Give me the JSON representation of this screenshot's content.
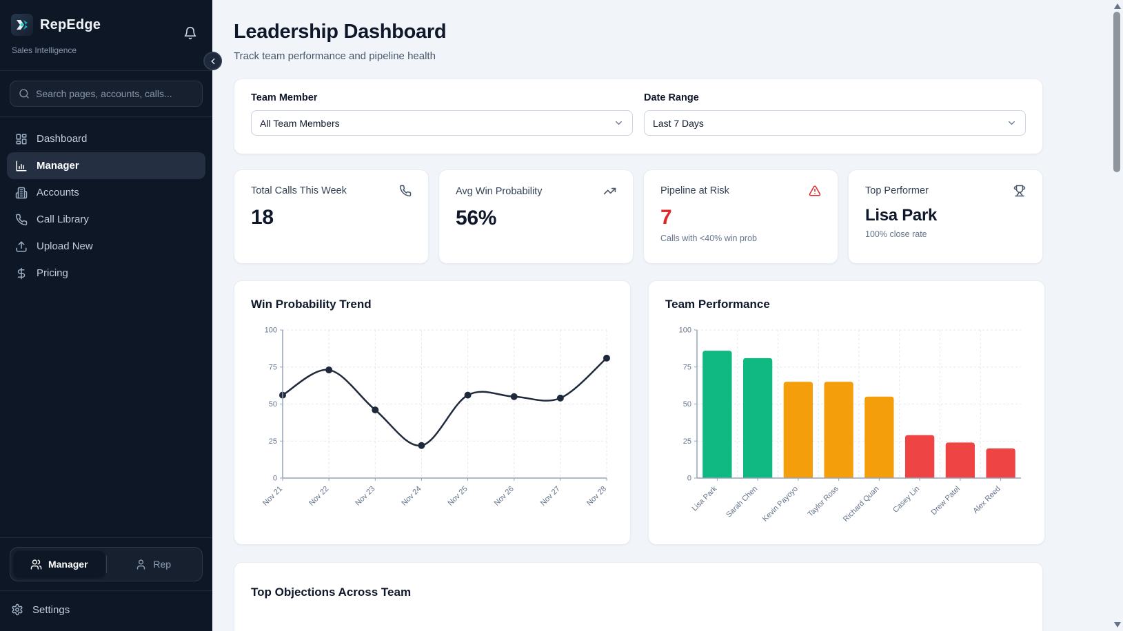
{
  "sidebar": {
    "brand": "RepEdge",
    "tagline": "Sales Intelligence",
    "search_placeholder": "Search pages, accounts, calls...",
    "nav": [
      {
        "label": "Dashboard",
        "icon": "dashboard-grid-icon",
        "active": false
      },
      {
        "label": "Manager",
        "icon": "bar-chart-icon",
        "active": true
      },
      {
        "label": "Accounts",
        "icon": "building-icon",
        "active": false
      },
      {
        "label": "Call Library",
        "icon": "phone-icon",
        "active": false
      },
      {
        "label": "Upload New",
        "icon": "upload-icon",
        "active": false
      },
      {
        "label": "Pricing",
        "icon": "dollar-icon",
        "active": false
      }
    ],
    "role_toggle": {
      "manager": "Manager",
      "rep": "Rep",
      "selected": "Manager"
    },
    "settings_label": "Settings"
  },
  "header": {
    "title": "Leadership Dashboard",
    "subtitle": "Track team performance and pipeline health"
  },
  "filters": {
    "team_member": {
      "label": "Team Member",
      "value": "All Team Members"
    },
    "date_range": {
      "label": "Date Range",
      "value": "Last 7 Days"
    }
  },
  "stats": [
    {
      "label": "Total Calls This Week",
      "value": "18",
      "icon": "phone-icon",
      "value_color": "#0f172a"
    },
    {
      "label": "Avg Win Probability",
      "value": "56%",
      "icon": "trending-up-icon",
      "value_color": "#0f172a"
    },
    {
      "label": "Pipeline at Risk",
      "value": "7",
      "subtext": "Calls with <40% win prob",
      "icon": "alert-triangle-icon",
      "value_color": "#dc2626"
    },
    {
      "label": "Top Performer",
      "value": "Lisa Park",
      "subtext": "100% close rate",
      "icon": "trophy-icon",
      "value_color": "#0f172a"
    }
  ],
  "chart_data": [
    {
      "type": "line",
      "title": "Win Probability Trend",
      "x": [
        "Nov 21",
        "Nov 22",
        "Nov 23",
        "Nov 24",
        "Nov 25",
        "Nov 26",
        "Nov 27",
        "Nov 28"
      ],
      "values": [
        56,
        73,
        46,
        22,
        56,
        55,
        54,
        81
      ],
      "ylim": [
        0,
        100
      ],
      "yticks": [
        0,
        25,
        50,
        75,
        100
      ],
      "line_color": "#1e293b",
      "grid": true,
      "legend": "none"
    },
    {
      "type": "bar",
      "title": "Team Performance",
      "categories": [
        "Lisa Park",
        "Sarah Chen",
        "Kevin Payoyo",
        "Taylor Ross",
        "Richard Quan",
        "Casey Lin",
        "Drew Patel",
        "Alex Reed"
      ],
      "values": [
        86,
        81,
        65,
        65,
        55,
        29,
        24,
        20
      ],
      "colors": [
        "#10b981",
        "#10b981",
        "#f59e0b",
        "#f59e0b",
        "#f59e0b",
        "#ef4444",
        "#ef4444",
        "#ef4444"
      ],
      "ylim": [
        0,
        100
      ],
      "yticks": [
        0,
        25,
        50,
        75,
        100
      ],
      "grid": true,
      "legend": "none"
    }
  ],
  "bottom_section": {
    "title": "Top Objections Across Team"
  },
  "colors": {
    "sidebar_bg": "#0d1726",
    "main_bg": "#f1f5f9",
    "risk_red": "#dc2626",
    "bar_green": "#10b981",
    "bar_orange": "#f59e0b",
    "bar_red": "#ef4444",
    "line": "#1e293b"
  }
}
